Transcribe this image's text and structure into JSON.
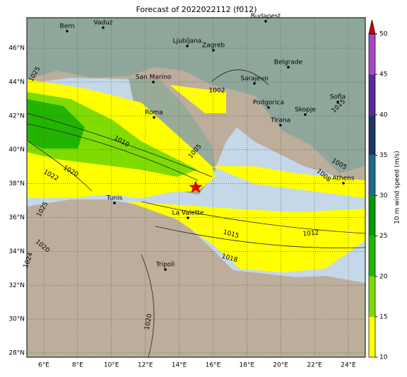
{
  "title": "Forecast of 2022022112 (f012)",
  "map": {
    "xlim": [
      5,
      25
    ],
    "ylim": [
      27.75,
      47.8
    ],
    "grid": true,
    "xticks": [
      {
        "value": 6,
        "label": "6°E"
      },
      {
        "value": 8,
        "label": "8°E"
      },
      {
        "value": 10,
        "label": "10°E"
      },
      {
        "value": 12,
        "label": "12°E"
      },
      {
        "value": 14,
        "label": "14°E"
      },
      {
        "value": 16,
        "label": "16°E"
      },
      {
        "value": 18,
        "label": "18°E"
      },
      {
        "value": 20,
        "label": "20°E"
      },
      {
        "value": 22,
        "label": "22°E"
      },
      {
        "value": 24,
        "label": "24°E"
      }
    ],
    "yticks": [
      {
        "value": 28,
        "label": "28°N"
      },
      {
        "value": 30,
        "label": "30°N"
      },
      {
        "value": 32,
        "label": "32°N"
      },
      {
        "value": 34,
        "label": "34°N"
      },
      {
        "value": 36,
        "label": "36°N"
      },
      {
        "value": 38,
        "label": "38°N"
      },
      {
        "value": 40,
        "label": "40°N"
      },
      {
        "value": 42,
        "label": "42°N"
      },
      {
        "value": 44,
        "label": "44°N"
      },
      {
        "value": 46,
        "label": "46°N"
      }
    ],
    "cities": [
      "Bern",
      "Vaduz",
      "Budapest",
      "Ljubljana",
      "Zagreb",
      "Belgrade",
      "San Marino",
      "Sarajevo",
      "Sofia",
      "Podgorica",
      "Skopje",
      "Roma",
      "Tirana",
      "Athens",
      "Tunis",
      "La Valette",
      "Tripoli"
    ],
    "isobar_labels": [
      "1025",
      "1002",
      "1015",
      "1010",
      "1005",
      "1020",
      "1022",
      "1005",
      "1008",
      "1025",
      "1020",
      "1024",
      "1015",
      "1012",
      "1018",
      "1020"
    ],
    "marker_color": "#e00000"
  },
  "colorbar": {
    "label": "10 m wind speed (m/s)",
    "lim": [
      10,
      50
    ],
    "ticks": [
      10,
      15,
      20,
      25,
      30,
      35,
      40,
      45,
      50
    ],
    "colors": [
      "#ffff00",
      "#80dc00",
      "#22b400",
      "#009a00",
      "#1f6a8c",
      "#1c3466",
      "#5a2a9a",
      "#a646c4"
    ],
    "extend_color": "#d40000"
  }
}
